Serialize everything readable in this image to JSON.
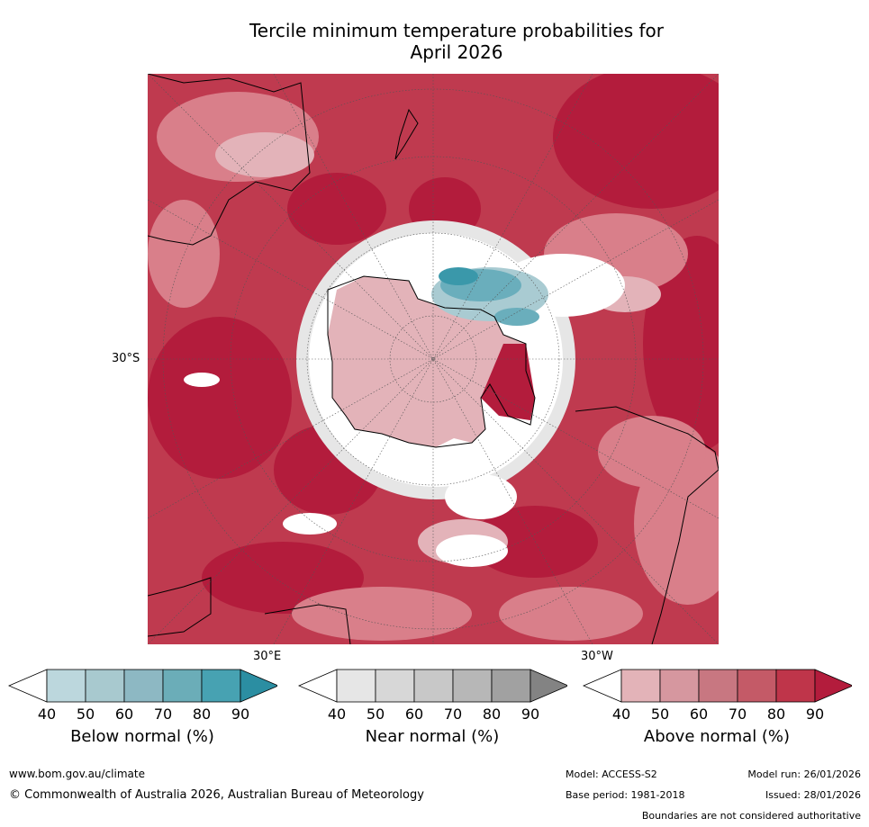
{
  "title": {
    "line1": "Tercile minimum temperature probabilities for",
    "line2": "April 2026"
  },
  "map": {
    "projection": "South polar stereographic",
    "lat_label": "30°S",
    "lon_labels": {
      "east": "30°E",
      "west": "30°W"
    },
    "colors": {
      "above_base": "#bf3a4f",
      "above_dark": "#b31c3c",
      "above_light": "#d97f8a",
      "above_pale": "#e3b3b9",
      "near_white": "#ffffff",
      "near_grey": "#e6e6e6",
      "below_light": "#a9cbd2",
      "below_mid": "#6aaebc",
      "below_dark": "#3a98aa"
    }
  },
  "colorbars": [
    {
      "label": "Below normal (%)",
      "ticks": [
        "40",
        "50",
        "60",
        "70",
        "80",
        "90"
      ],
      "colors": [
        "#ffffff",
        "#bcd7dd",
        "#a8c9cf",
        "#8db8c3",
        "#6badb8",
        "#47a2b2",
        "#2b8ea2"
      ]
    },
    {
      "label": "Near normal (%)",
      "ticks": [
        "40",
        "50",
        "60",
        "70",
        "80",
        "90"
      ],
      "colors": [
        "#ffffff",
        "#e6e6e6",
        "#d7d7d7",
        "#c8c8c8",
        "#b7b7b7",
        "#a1a1a1",
        "#838383"
      ]
    },
    {
      "label": "Above normal (%)",
      "ticks": [
        "40",
        "50",
        "60",
        "70",
        "80",
        "90"
      ],
      "colors": [
        "#ffffff",
        "#e3b3b8",
        "#d6979f",
        "#c87781",
        "#c45a67",
        "#bf354a",
        "#b31c3c"
      ]
    }
  ],
  "footer": {
    "url": "www.bom.gov.au/climate",
    "copyright": "© Commonwealth of Australia 2026, Australian Bureau of Meteorology",
    "model": "Model: ACCESS-S2",
    "model_run": "Model run: 26/01/2026",
    "base_period": "Base period: 1981-2018",
    "issued": "Issued: 28/01/2026",
    "disclaimer": "Boundaries are not considered authoritative"
  }
}
